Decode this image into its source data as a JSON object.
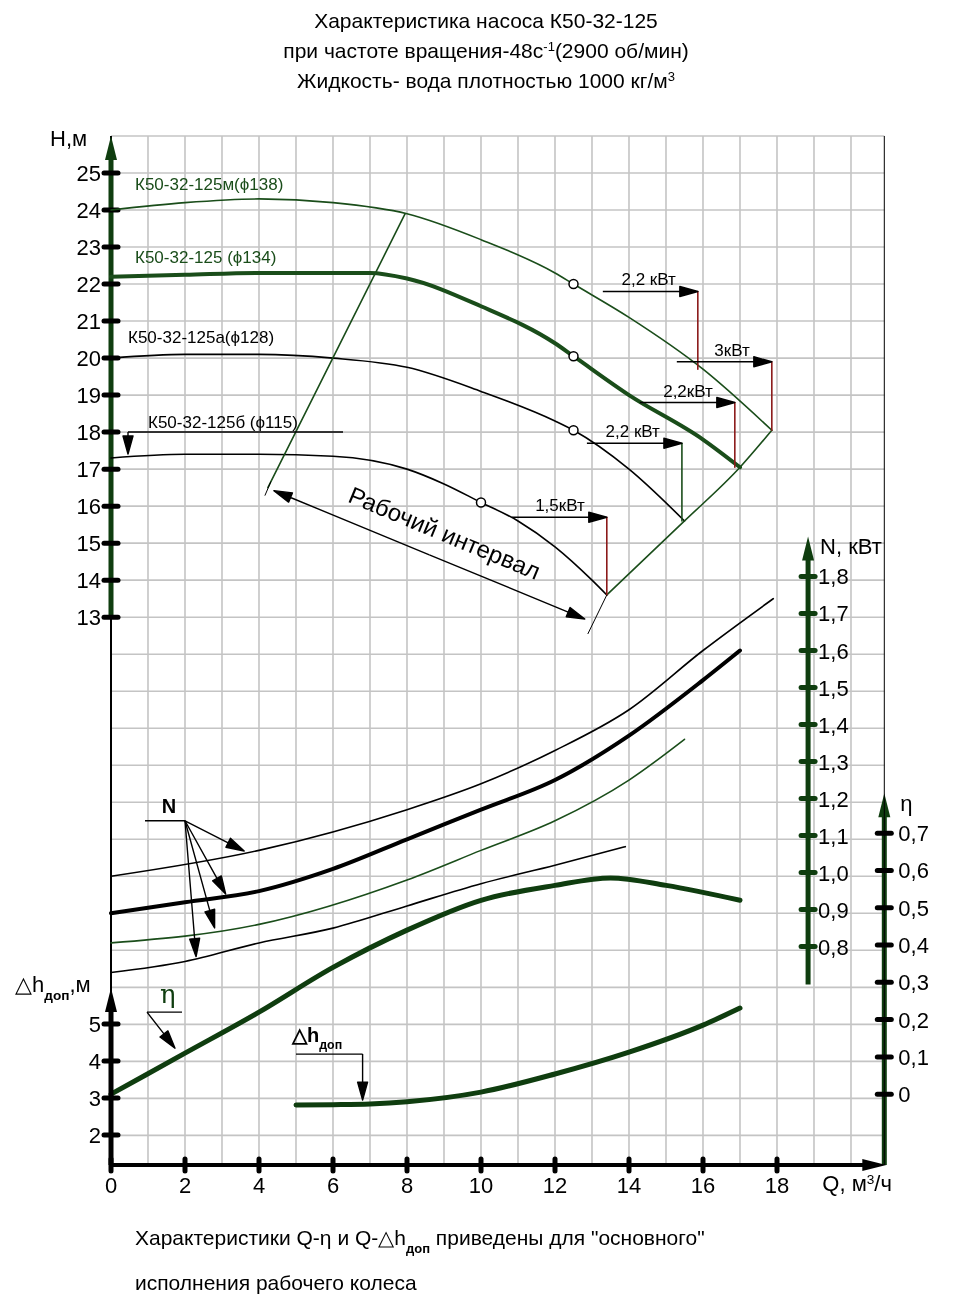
{
  "chart_data": [
    {
      "type": "line",
      "title": "Характеристика насоса К50-32-125\nпри частоте вращения-48с$^{-1}$(2900 об/мин)\nЖидкость- вода плотностью 1000 кг/м$^{3}$",
      "xlabel": "Q, м$^{3}$/ч",
      "ylabel": "H,м",
      "y2label": "N, кВт",
      "y3label": "η",
      "xlim": [
        0,
        20.9
      ],
      "xticks": [
        0,
        2,
        4,
        6,
        8,
        10,
        12,
        14,
        16,
        18
      ],
      "ylim": [
        -1.8,
        26
      ],
      "yticks": [
        13,
        14,
        15,
        16,
        17,
        18,
        19,
        20,
        21,
        22,
        23,
        24,
        25
      ],
      "y2lim": [
        0.21,
        2.99
      ],
      "y2ticks": [
        {
          "value": 0.8,
          "label": "0,8"
        },
        {
          "value": 0.9,
          "label": "0,9"
        },
        {
          "value": 1.0,
          "label": "1,0"
        },
        {
          "value": 1.1,
          "label": "1,1"
        },
        {
          "value": 1.2,
          "label": "1,2"
        },
        {
          "value": 1.3,
          "label": "1,3"
        },
        {
          "value": 1.4,
          "label": "1,4"
        },
        {
          "value": 1.5,
          "label": "1,5"
        },
        {
          "value": 1.6,
          "label": "1,6"
        },
        {
          "value": 1.7,
          "label": "1,7"
        },
        {
          "value": 1.8,
          "label": "1,8"
        }
      ],
      "y3lim": [
        -0.19,
        2.57
      ],
      "y3ticks": [
        0,
        {
          "value": 0.1,
          "label": "0,1"
        },
        {
          "value": 0.2,
          "label": "0,2"
        },
        {
          "value": 0.3,
          "label": "0,3"
        },
        {
          "value": 0.4,
          "label": "0,4"
        },
        {
          "value": 0.5,
          "label": "0,5"
        },
        {
          "value": 0.6,
          "label": "0,6"
        },
        {
          "value": 0.7,
          "label": "0,7"
        }
      ],
      "grid": true,
      "series": [
        {
          "name": "К50-32-125м(ϕ138)",
          "color": "#1a4d1a",
          "x": [
            0,
            2,
            4,
            6,
            8,
            10,
            12,
            12.5,
            14,
            16,
            17.86
          ],
          "values": [
            24.0,
            24.2,
            24.3,
            24.2,
            23.9,
            23.2,
            22.3,
            22.0,
            21.1,
            19.7,
            18.05
          ]
        },
        {
          "name": "К50-32-125 (ϕ134)",
          "color": "#1a4d1a",
          "x": [
            0,
            2,
            4,
            6,
            7,
            8,
            10,
            12,
            12.5,
            14,
            16,
            17
          ],
          "values": [
            22.2,
            22.25,
            22.3,
            22.3,
            22.3,
            22.15,
            21.4,
            20.4,
            20.05,
            19.0,
            17.8,
            17.05
          ]
        },
        {
          "name": "К50-32-125а(ϕ128)",
          "color": "#000000",
          "x": [
            0,
            2,
            4,
            6,
            8,
            10,
            12,
            12.5,
            14,
            15.5
          ],
          "values": [
            20.0,
            20.1,
            20.1,
            20.0,
            19.75,
            19.1,
            18.3,
            18.05,
            17.0,
            15.6
          ]
        },
        {
          "name": "К50-32-125б (ϕ115)",
          "color": "#000000",
          "x": [
            0,
            2,
            4,
            6,
            8,
            9,
            10,
            11,
            12,
            13,
            13.4
          ],
          "values": [
            17.3,
            17.4,
            17.4,
            17.35,
            17.0,
            16.6,
            16.1,
            15.6,
            14.9,
            14.0,
            13.6
          ]
        },
        {
          "color": "#1a4d1a",
          "x": [
            4.24,
            7.95
          ],
          "values": [
            16.5,
            23.9
          ]
        },
        {
          "color": "#1a4d1a",
          "x": [
            13.4,
            15.5,
            17,
            17.86
          ],
          "values": [
            13.6,
            15.6,
            17.05,
            18.05
          ]
        },
        {
          "color": "#8b1a1a",
          "x": [
            15.86,
            15.86
          ],
          "values": [
            21.8,
            19.7
          ]
        },
        {
          "color": "#8b1a1a",
          "x": [
            17.86,
            17.86
          ],
          "values": [
            19.9,
            18.05
          ]
        },
        {
          "color": "#8b1a1a",
          "x": [
            16.86,
            16.86
          ],
          "values": [
            18.8,
            17.05
          ]
        },
        {
          "color": "#1a4d1a",
          "x": [
            15.43,
            15.43
          ],
          "values": [
            17.7,
            15.6
          ]
        },
        {
          "color": "#8b1a1a",
          "x": [
            13.4,
            13.4
          ],
          "values": [
            15.7,
            13.6
          ]
        },
        {
          "type": "scatter",
          "marker": "circle",
          "color": "#000000",
          "x": [
            12.5,
            12.5,
            12.5,
            10
          ],
          "values": [
            22.0,
            20.05,
            18.05,
            16.1
          ]
        },
        {
          "axis": "y2",
          "color": "#000000",
          "x": [
            0,
            4,
            8,
            10,
            12,
            14,
            16,
            17.9
          ],
          "values": [
            0.99,
            1.06,
            1.17,
            1.24,
            1.33,
            1.44,
            1.6,
            1.74
          ]
        },
        {
          "axis": "y2",
          "color": "#000000",
          "x": [
            0,
            2,
            4,
            6,
            8,
            10,
            12,
            14,
            16,
            17
          ],
          "values": [
            0.89,
            0.92,
            0.95,
            1.01,
            1.09,
            1.17,
            1.25,
            1.37,
            1.52,
            1.6
          ]
        },
        {
          "axis": "y2",
          "color": "#1a4d1a",
          "x": [
            0,
            4,
            8,
            10,
            12,
            14,
            15.5
          ],
          "values": [
            0.81,
            0.86,
            0.98,
            1.06,
            1.14,
            1.25,
            1.36
          ]
        },
        {
          "axis": "y2",
          "color": "#000000",
          "x": [
            0,
            2,
            4,
            6,
            8,
            10,
            12,
            13.9
          ],
          "values": [
            0.73,
            0.76,
            0.81,
            0.85,
            0.91,
            0.97,
            1.02,
            1.07
          ]
        },
        {
          "name": "η",
          "axis": "y3",
          "color": "#0f3d0f",
          "x": [
            0,
            2,
            4,
            6,
            8,
            10,
            12,
            13.5,
            15,
            17
          ],
          "values": [
            0.0,
            0.11,
            0.22,
            0.34,
            0.44,
            0.52,
            0.56,
            0.58,
            0.56,
            0.52
          ]
        }
      ],
      "annotations": [
        {
          "text": "2,2 кВт",
          "x": 15.86,
          "y": 21.8
        },
        {
          "text": "3кВт",
          "x": 17.86,
          "y": 19.9
        },
        {
          "text": "2,2кВт",
          "x": 16.86,
          "y": 18.8
        },
        {
          "text": "2,2 кВт",
          "x": 15.43,
          "y": 17.7
        },
        {
          "text": "1,5кВт",
          "x": 13.4,
          "y": 15.7
        },
        "Рабочий интервал",
        "N",
        "Характеристики Q-η и Q-△h$_{доп}$ приведены для \"основного\" исполнения рабочего колеса"
      ]
    },
    {
      "type": "line",
      "ylabel": "△h$_{доп}$,м",
      "xlim": [
        0,
        20.9
      ],
      "ylim": [
        1.19,
        29.0
      ],
      "yticks": [
        2,
        3,
        4,
        5
      ],
      "tick_labels": "y",
      "series": [
        {
          "name": "△h$_{доп}$",
          "color": "#0f3d0f",
          "x": [
            5,
            6,
            7,
            8,
            10,
            12,
            14,
            16,
            17
          ],
          "values": [
            2.81,
            2.82,
            2.84,
            2.9,
            3.16,
            3.65,
            4.24,
            4.97,
            5.43
          ]
        }
      ]
    }
  ]
}
